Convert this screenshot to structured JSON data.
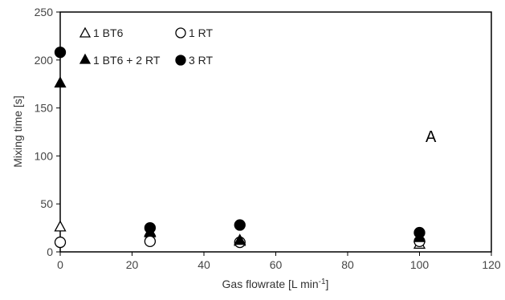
{
  "chart_data": {
    "type": "scatter",
    "title": "",
    "xlabel": "Gas flowrate [L min",
    "xlabel_sup": "-1",
    "xlabel_end": "]",
    "ylabel": "Mixing time [s]",
    "xlim": [
      0,
      120
    ],
    "ylim": [
      0,
      250
    ],
    "xticks": [
      0,
      20,
      40,
      60,
      80,
      100,
      120
    ],
    "yticks": [
      0,
      50,
      100,
      150,
      200,
      250
    ],
    "grid": false,
    "legend_position": "top-left",
    "annotations": [
      {
        "text": "A"
      }
    ],
    "series": [
      {
        "name": "1 BT6",
        "marker": "triangle-open",
        "x": [
          0,
          25,
          50,
          100
        ],
        "y": [
          26,
          20,
          11,
          8
        ]
      },
      {
        "name": "1 RT",
        "marker": "circle-open",
        "x": [
          0,
          25,
          50,
          100
        ],
        "y": [
          10,
          11,
          10,
          11
        ]
      },
      {
        "name": "1 BT6 + 2 RT",
        "marker": "triangle-filled",
        "x": [
          0,
          25,
          50,
          100
        ],
        "y": [
          176,
          21,
          12,
          15
        ]
      },
      {
        "name": "3 RT",
        "marker": "circle-filled",
        "x": [
          0,
          25,
          50,
          100
        ],
        "y": [
          208,
          25,
          28,
          20
        ]
      }
    ]
  }
}
